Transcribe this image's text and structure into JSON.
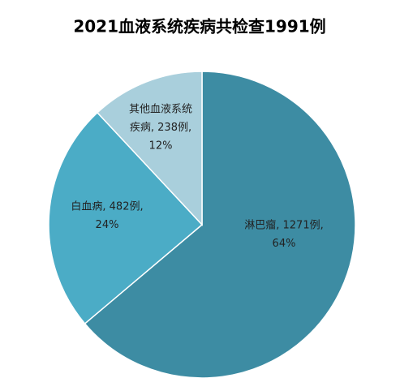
{
  "chart_data": {
    "type": "pie",
    "title": "2021血液系统疾病共检查1991例",
    "categories": [
      "淋巴瘤",
      "白血病",
      "其他血液系统疾病"
    ],
    "values": [
      1271,
      482,
      238
    ],
    "colors": [
      "#3d8ca3",
      "#4bacc6",
      "#a9cfdc"
    ],
    "data_labels": [
      [
        "淋巴瘤, 1271例,",
        "64%"
      ],
      [
        "白血病, 482例,",
        "24%"
      ],
      [
        "其他血液系统",
        "疾病, 238例,",
        "12%"
      ]
    ]
  }
}
